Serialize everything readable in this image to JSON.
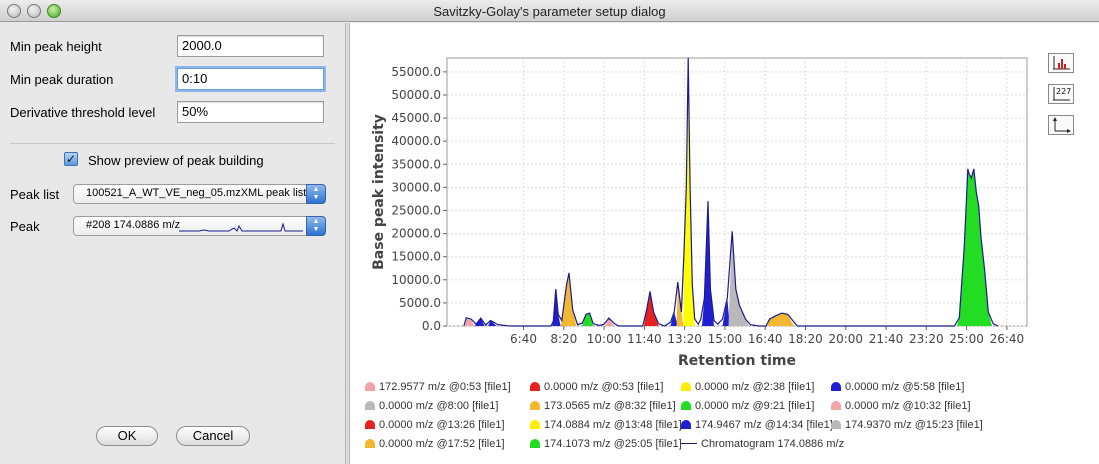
{
  "window": {
    "title": "Savitzky-Golay's parameter setup dialog"
  },
  "form": {
    "min_peak_height": {
      "label": "Min peak height",
      "value": "2000.0"
    },
    "min_peak_duration": {
      "label": "Min peak duration",
      "value": "0:10"
    },
    "derivative_threshold": {
      "label": "Derivative threshold level",
      "value": "50%"
    },
    "show_preview": {
      "label": "Show preview of peak building",
      "checked": true
    },
    "peak_list": {
      "label": "Peak list",
      "value": "100521_A_WT_VE_neg_05.mzXML peak list"
    },
    "peak": {
      "label": "Peak",
      "value": "#208 174.0886 m/z"
    }
  },
  "buttons": {
    "ok": "OK",
    "cancel": "Cancel"
  },
  "toolbar": {
    "icons": [
      "histogram-icon",
      "data-labels-icon",
      "axes-icon"
    ],
    "labels_text": "227"
  },
  "chart_data": {
    "type": "area",
    "xlabel": "Retention time",
    "ylabel": "Base peak intensity",
    "xlim": [
      3.5,
      27.5
    ],
    "ylim": [
      0,
      58000
    ],
    "xticks": [
      {
        "v": 6.667,
        "t": "6:40"
      },
      {
        "v": 8.333,
        "t": "8:20"
      },
      {
        "v": 10.0,
        "t": "10:00"
      },
      {
        "v": 11.667,
        "t": "11:40"
      },
      {
        "v": 13.333,
        "t": "13:20"
      },
      {
        "v": 15.0,
        "t": "15:00"
      },
      {
        "v": 16.667,
        "t": "16:40"
      },
      {
        "v": 18.333,
        "t": "18:20"
      },
      {
        "v": 20.0,
        "t": "20:00"
      },
      {
        "v": 21.667,
        "t": "21:40"
      },
      {
        "v": 23.333,
        "t": "23:20"
      },
      {
        "v": 25.0,
        "t": "25:00"
      },
      {
        "v": 26.667,
        "t": "26:40"
      }
    ],
    "yticks": [
      {
        "v": 0,
        "t": "0.0"
      },
      {
        "v": 5000,
        "t": "5000.0"
      },
      {
        "v": 10000,
        "t": "10000.0"
      },
      {
        "v": 15000,
        "t": "15000.0"
      },
      {
        "v": 20000,
        "t": "20000.0"
      },
      {
        "v": 25000,
        "t": "25000.0"
      },
      {
        "v": 30000,
        "t": "30000.0"
      },
      {
        "v": 35000,
        "t": "35000.0"
      },
      {
        "v": 40000,
        "t": "40000.0"
      },
      {
        "v": 45000,
        "t": "45000.0"
      },
      {
        "v": 50000,
        "t": "50000.0"
      },
      {
        "v": 55000,
        "t": "55000.0"
      }
    ],
    "chromatogram": [
      [
        4.2,
        0
      ],
      [
        4.3,
        1800
      ],
      [
        4.5,
        1500
      ],
      [
        4.7,
        400
      ],
      [
        4.9,
        1700
      ],
      [
        5.1,
        200
      ],
      [
        5.3,
        1200
      ],
      [
        5.6,
        300
      ],
      [
        5.9,
        100
      ],
      [
        6.1,
        0
      ],
      [
        7.8,
        0
      ],
      [
        7.9,
        1000
      ],
      [
        8.0,
        8000
      ],
      [
        8.1,
        2500
      ],
      [
        8.25,
        1200
      ],
      [
        8.45,
        9000
      ],
      [
        8.55,
        11500
      ],
      [
        8.7,
        3500
      ],
      [
        8.9,
        300
      ],
      [
        9.1,
        600
      ],
      [
        9.25,
        2500
      ],
      [
        9.4,
        2800
      ],
      [
        9.55,
        500
      ],
      [
        9.8,
        100
      ],
      [
        10.0,
        400
      ],
      [
        10.2,
        1700
      ],
      [
        10.4,
        600
      ],
      [
        10.6,
        0
      ],
      [
        11.6,
        0
      ],
      [
        11.75,
        3200
      ],
      [
        11.9,
        7500
      ],
      [
        12.05,
        3000
      ],
      [
        12.25,
        500
      ],
      [
        12.5,
        0
      ],
      [
        12.75,
        800
      ],
      [
        12.9,
        3000
      ],
      [
        13.05,
        9500
      ],
      [
        13.2,
        3000
      ],
      [
        13.3,
        15000
      ],
      [
        13.4,
        30000
      ],
      [
        13.48,
        58000
      ],
      [
        13.56,
        30000
      ],
      [
        13.65,
        9000
      ],
      [
        13.75,
        1500
      ],
      [
        13.9,
        400
      ],
      [
        14.0,
        1500
      ],
      [
        14.15,
        6000
      ],
      [
        14.3,
        27000
      ],
      [
        14.4,
        8000
      ],
      [
        14.55,
        1200
      ],
      [
        14.7,
        400
      ],
      [
        14.9,
        1500
      ],
      [
        15.1,
        6000
      ],
      [
        15.3,
        20500
      ],
      [
        15.45,
        8000
      ],
      [
        15.6,
        4500
      ],
      [
        15.85,
        1500
      ],
      [
        16.05,
        300
      ],
      [
        16.4,
        0
      ],
      [
        16.7,
        0
      ],
      [
        16.85,
        1500
      ],
      [
        17.1,
        2200
      ],
      [
        17.35,
        2800
      ],
      [
        17.6,
        2500
      ],
      [
        17.85,
        900
      ],
      [
        18.0,
        0
      ],
      [
        24.5,
        0
      ],
      [
        24.7,
        1800
      ],
      [
        24.9,
        17000
      ],
      [
        25.0,
        28000
      ],
      [
        25.05,
        34000
      ],
      [
        25.1,
        33000
      ],
      [
        25.2,
        32000
      ],
      [
        25.3,
        34000
      ],
      [
        25.4,
        29000
      ],
      [
        25.5,
        26000
      ],
      [
        25.6,
        19000
      ],
      [
        25.75,
        12000
      ],
      [
        25.9,
        3000
      ],
      [
        26.1,
        500
      ],
      [
        26.3,
        0
      ]
    ],
    "peaks": [
      {
        "color": "#f4a4a4",
        "pts": [
          [
            4.25,
            0
          ],
          [
            4.3,
            1800
          ],
          [
            4.5,
            1500
          ],
          [
            4.6,
            0
          ]
        ]
      },
      {
        "color": "#2020d0",
        "pts": [
          [
            4.65,
            0
          ],
          [
            4.7,
            400
          ],
          [
            4.9,
            1700
          ],
          [
            5.05,
            0
          ]
        ]
      },
      {
        "color": "#2020d0",
        "pts": [
          [
            5.2,
            0
          ],
          [
            5.3,
            1200
          ],
          [
            5.55,
            0
          ]
        ]
      },
      {
        "color": "#2020d0",
        "pts": [
          [
            7.85,
            0
          ],
          [
            7.9,
            1000
          ],
          [
            8.0,
            8000
          ],
          [
            8.1,
            2500
          ],
          [
            8.2,
            0
          ]
        ]
      },
      {
        "color": "#f2b830",
        "pts": [
          [
            8.2,
            0
          ],
          [
            8.25,
            1200
          ],
          [
            8.45,
            9000
          ],
          [
            8.55,
            11500
          ],
          [
            8.7,
            3500
          ],
          [
            8.85,
            0
          ]
        ]
      },
      {
        "color": "#22dd22",
        "pts": [
          [
            9.1,
            0
          ],
          [
            9.25,
            2500
          ],
          [
            9.4,
            2800
          ],
          [
            9.55,
            0
          ]
        ]
      },
      {
        "color": "#f4a4a4",
        "pts": [
          [
            10.05,
            0
          ],
          [
            10.2,
            1700
          ],
          [
            10.4,
            0
          ]
        ]
      },
      {
        "color": "#e82020",
        "pts": [
          [
            11.65,
            0
          ],
          [
            11.75,
            3200
          ],
          [
            11.9,
            7500
          ],
          [
            12.05,
            3000
          ],
          [
            12.25,
            0
          ]
        ]
      },
      {
        "color": "#2020d0",
        "pts": [
          [
            12.75,
            0
          ],
          [
            12.9,
            3000
          ],
          [
            13.05,
            0
          ]
        ]
      },
      {
        "color": "#f2b830",
        "pts": [
          [
            13.0,
            0
          ],
          [
            13.05,
            9500
          ],
          [
            13.2,
            3000
          ],
          [
            13.28,
            0
          ]
        ]
      },
      {
        "color": "#ffff00",
        "pts": [
          [
            13.28,
            0
          ],
          [
            13.3,
            15000
          ],
          [
            13.4,
            30000
          ],
          [
            13.48,
            58000
          ],
          [
            13.56,
            30000
          ],
          [
            13.65,
            9000
          ],
          [
            13.75,
            0
          ]
        ]
      },
      {
        "color": "#2020d0",
        "pts": [
          [
            14.05,
            0
          ],
          [
            14.15,
            6000
          ],
          [
            14.3,
            27000
          ],
          [
            14.4,
            8000
          ],
          [
            14.55,
            0
          ]
        ]
      },
      {
        "color": "#2020d0",
        "pts": [
          [
            14.9,
            0
          ],
          [
            15.1,
            6000
          ],
          [
            15.2,
            0
          ]
        ]
      },
      {
        "color": "#b9b9b9",
        "pts": [
          [
            15.15,
            0
          ],
          [
            15.3,
            20500
          ],
          [
            15.45,
            8000
          ],
          [
            15.6,
            4500
          ],
          [
            15.85,
            1500
          ],
          [
            16.0,
            0
          ]
        ]
      },
      {
        "color": "#f2b830",
        "pts": [
          [
            16.75,
            0
          ],
          [
            16.85,
            1500
          ],
          [
            17.1,
            2200
          ],
          [
            17.35,
            2800
          ],
          [
            17.6,
            2500
          ],
          [
            17.85,
            0
          ]
        ]
      },
      {
        "color": "#22dd22",
        "pts": [
          [
            24.6,
            0
          ],
          [
            24.7,
            1800
          ],
          [
            24.9,
            17000
          ],
          [
            25.0,
            28000
          ],
          [
            25.05,
            34000
          ],
          [
            25.1,
            33000
          ],
          [
            25.2,
            32000
          ],
          [
            25.3,
            34000
          ],
          [
            25.4,
            29000
          ],
          [
            25.5,
            26000
          ],
          [
            25.6,
            19000
          ],
          [
            25.75,
            12000
          ],
          [
            25.9,
            3000
          ],
          [
            26.05,
            0
          ]
        ]
      }
    ]
  },
  "legend": [
    {
      "color": "#f4a4a4",
      "text": "172.9577 m/z @0:53 [file1]"
    },
    {
      "color": "#e82020",
      "text": "0.0000 m/z @0:53 [file1]"
    },
    {
      "color": "#ffee00",
      "text": "0.0000 m/z @2:38 [file1]"
    },
    {
      "color": "#2020d0",
      "text": "0.0000 m/z @5:58 [file1]"
    },
    {
      "color": "#b9b9b9",
      "text": "0.0000 m/z @8:00 [file1]"
    },
    {
      "color": "#f2b830",
      "text": "173.0565 m/z @8:32 [file1]"
    },
    {
      "color": "#22dd22",
      "text": "0.0000 m/z @9:21 [file1]"
    },
    {
      "color": "#f4a4a4",
      "text": "0.0000 m/z @10:32 [file1]"
    },
    {
      "color": "#e82020",
      "text": "0.0000 m/z @13:26 [file1]"
    },
    {
      "color": "#ffee00",
      "text": "174.0884 m/z @13:48 [file1]"
    },
    {
      "color": "#2020d0",
      "text": "174.9467 m/z @14:34 [file1]"
    },
    {
      "color": "#b9b9b9",
      "text": "174.9370 m/z @15:23 [file1]"
    },
    {
      "color": "#f2b830",
      "text": "0.0000 m/z @17:52 [file1]"
    },
    {
      "color": "#22dd22",
      "text": "174.1073 m/z @25:05 [file1]"
    },
    {
      "color": "#1a1a8c",
      "text": "Chromatogram 174.0886 m/z",
      "line": true
    }
  ]
}
